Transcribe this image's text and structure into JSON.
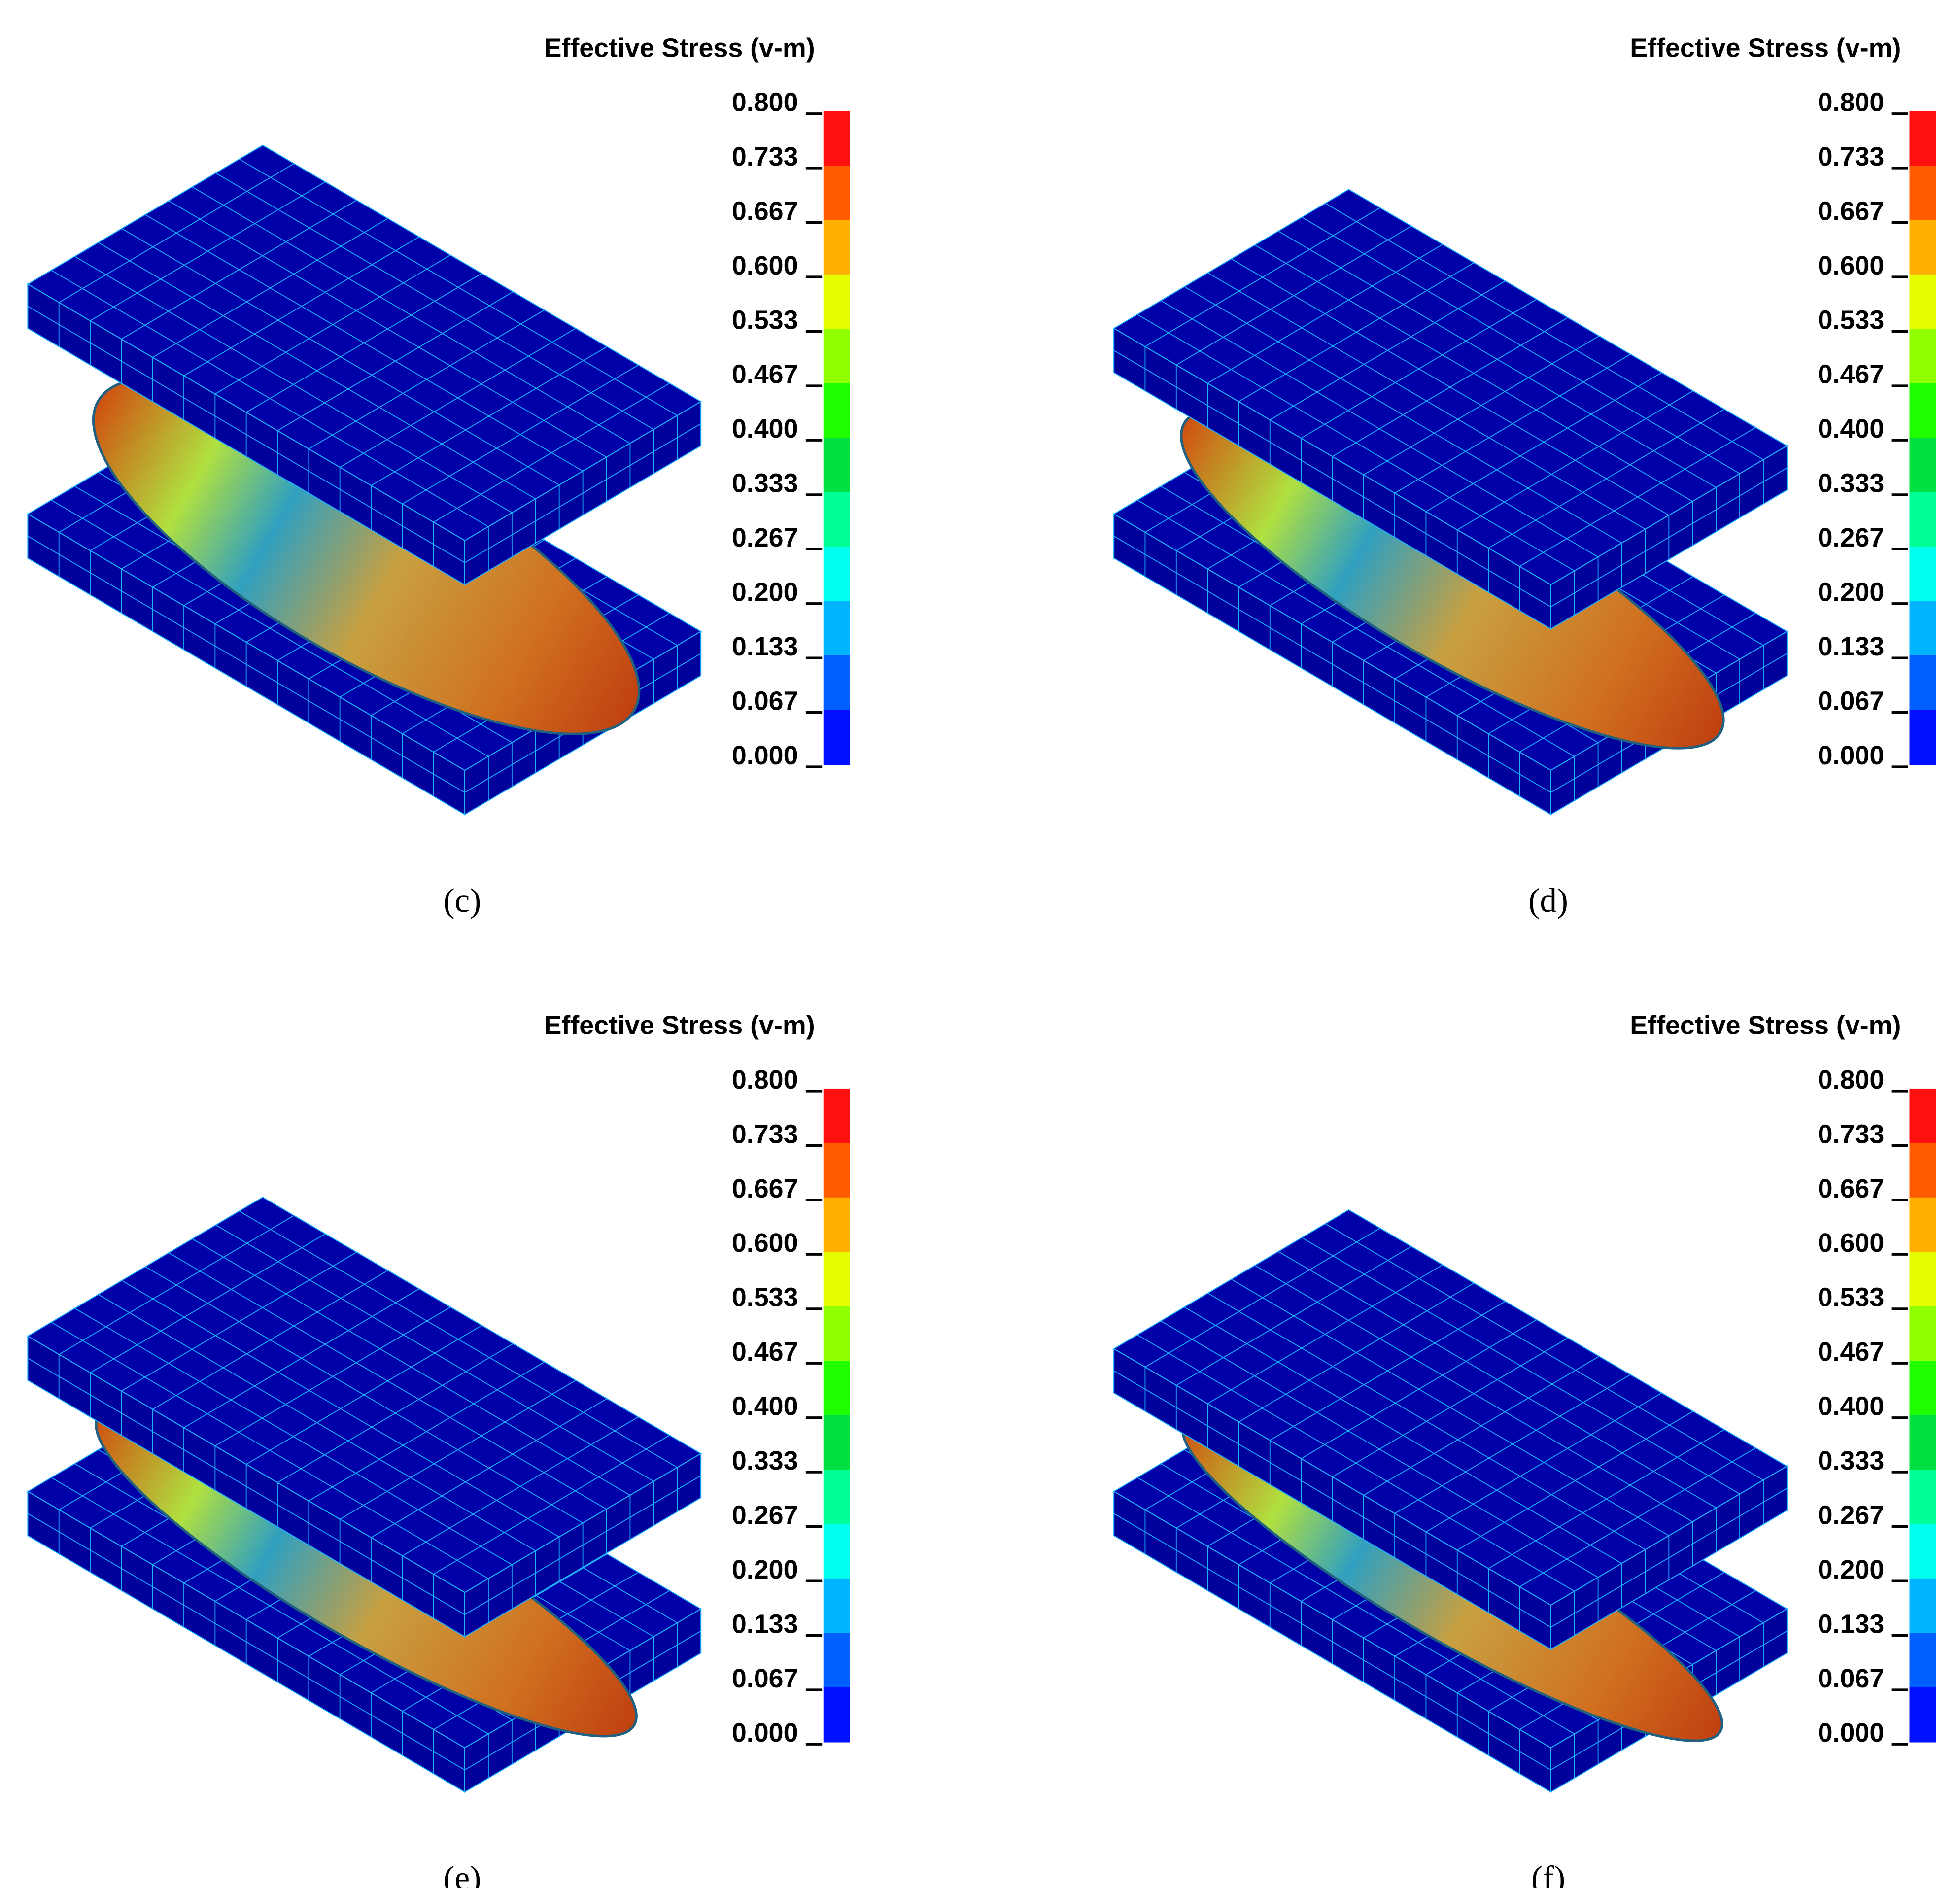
{
  "panels": [
    {
      "caption": "(c)",
      "legend": {
        "title": "Effective Stress (v-m)",
        "ticks": [
          "0.800",
          "0.733",
          "0.667",
          "0.600",
          "0.533",
          "0.467",
          "0.400",
          "0.333",
          "0.267",
          "0.200",
          "0.133",
          "0.067",
          "0.000"
        ],
        "colors": [
          "#ff1010",
          "#ff5c00",
          "#ffb000",
          "#e6ff00",
          "#90ff00",
          "#20ff00",
          "#00e040",
          "#00ff96",
          "#00ffee",
          "#00b4ff",
          "#0060ff",
          "#0010ff"
        ]
      }
    },
    {
      "caption": "(d)",
      "legend": {
        "title": "Effective Stress (v-m)",
        "ticks": [
          "0.800",
          "0.733",
          "0.667",
          "0.600",
          "0.533",
          "0.467",
          "0.400",
          "0.333",
          "0.267",
          "0.200",
          "0.133",
          "0.067",
          "0.000"
        ],
        "colors": [
          "#ff1010",
          "#ff5c00",
          "#ffb000",
          "#e6ff00",
          "#90ff00",
          "#20ff00",
          "#00e040",
          "#00ff96",
          "#00ffee",
          "#00b4ff",
          "#0060ff",
          "#0010ff"
        ]
      }
    },
    {
      "caption": "(e)",
      "legend": {
        "title": "Effective Stress (v-m)",
        "ticks": [
          "0.800",
          "0.733",
          "0.667",
          "0.600",
          "0.533",
          "0.467",
          "0.400",
          "0.333",
          "0.267",
          "0.200",
          "0.133",
          "0.067",
          "0.000"
        ],
        "colors": [
          "#ff1010",
          "#ff5c00",
          "#ffb000",
          "#e6ff00",
          "#90ff00",
          "#20ff00",
          "#00e040",
          "#00ff96",
          "#00ffee",
          "#00b4ff",
          "#0060ff",
          "#0010ff"
        ]
      }
    },
    {
      "caption": "(f)",
      "legend": {
        "title": "Effective Stress (v-m)",
        "ticks": [
          "0.800",
          "0.733",
          "0.667",
          "0.600",
          "0.533",
          "0.467",
          "0.400",
          "0.333",
          "0.267",
          "0.200",
          "0.133",
          "0.067",
          "0.000"
        ],
        "colors": [
          "#ff1010",
          "#ff5c00",
          "#ffb000",
          "#e6ff00",
          "#90ff00",
          "#20ff00",
          "#00e040",
          "#00ff96",
          "#00ffee",
          "#00b4ff",
          "#0060ff",
          "#0010ff"
        ]
      }
    }
  ]
}
